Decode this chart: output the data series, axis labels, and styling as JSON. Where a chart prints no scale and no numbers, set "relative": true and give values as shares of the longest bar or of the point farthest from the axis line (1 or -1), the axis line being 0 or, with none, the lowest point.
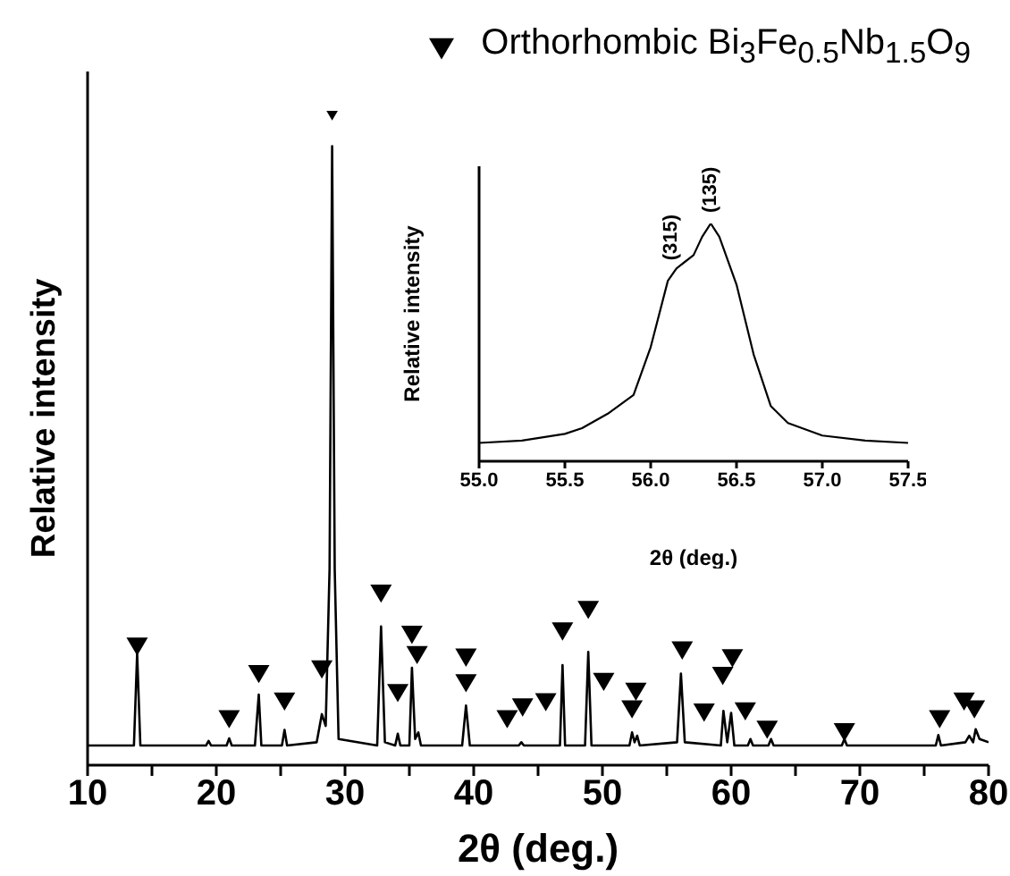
{
  "chart_data": [
    {
      "type": "line",
      "xlabel": "2θ (deg.)",
      "ylabel": "Relative intensity",
      "relative": true,
      "tick_labels": "x",
      "legend": "top right",
      "xlim": [
        10,
        80
      ],
      "xticks": [
        10,
        {
          "value": 15,
          "label": null
        },
        20,
        {
          "value": 25,
          "label": null
        },
        30,
        {
          "value": 35,
          "label": null
        },
        40,
        {
          "value": 45,
          "label": null
        },
        50,
        {
          "value": 55,
          "label": null
        },
        60,
        {
          "value": 65,
          "label": null
        },
        70,
        {
          "value": 75,
          "label": null
        },
        80
      ],
      "series": [
        {
          "type": "line",
          "color": "#000000",
          "marker": "none",
          "line_style": "solid",
          "x": [
            10,
            13.6,
            13.85,
            14.1,
            19.2,
            19.4,
            19.6,
            20.8,
            21.0,
            21.2,
            23.0,
            23.3,
            23.5,
            25.1,
            25.3,
            25.5,
            27.8,
            28.2,
            28.5,
            28.8,
            29.0,
            29.2,
            29.5,
            32.5,
            32.8,
            33.1,
            33.9,
            34.1,
            34.3,
            35.0,
            35.2,
            35.45,
            35.7,
            35.9,
            39.1,
            39.4,
            39.7,
            43.5,
            43.7,
            43.9,
            46.7,
            46.9,
            47.1,
            48.65,
            48.9,
            49.15,
            52.1,
            52.3,
            52.5,
            52.7,
            52.9,
            55.8,
            56.1,
            56.4,
            59.2,
            59.4,
            59.7,
            60.0,
            60.25,
            61.3,
            61.5,
            61.7,
            62.9,
            63.1,
            63.3,
            68.6,
            68.8,
            69.0,
            75.9,
            76.1,
            76.3,
            78.2,
            78.5,
            78.8,
            79.0,
            79.3,
            80
          ],
          "values": [
            0.03,
            0.03,
            0.171,
            0.03,
            0.03,
            0.037,
            0.03,
            0.03,
            0.041,
            0.03,
            0.03,
            0.108,
            0.03,
            0.03,
            0.054,
            0.03,
            0.035,
            0.078,
            0.06,
            0.3,
            0.946,
            0.3,
            0.04,
            0.03,
            0.212,
            0.035,
            0.03,
            0.048,
            0.03,
            0.03,
            0.149,
            0.04,
            0.05,
            0.03,
            0.03,
            0.091,
            0.03,
            0.03,
            0.035,
            0.03,
            0.03,
            0.153,
            0.03,
            0.03,
            0.173,
            0.03,
            0.03,
            0.05,
            0.035,
            0.045,
            0.03,
            0.035,
            0.14,
            0.035,
            0.03,
            0.083,
            0.035,
            0.08,
            0.03,
            0.03,
            0.04,
            0.03,
            0.03,
            0.04,
            0.03,
            0.03,
            0.04,
            0.03,
            0.03,
            0.046,
            0.03,
            0.035,
            0.045,
            0.035,
            0.055,
            0.04,
            0.035
          ]
        },
        {
          "type": "scatter",
          "name": "Orthorhombic Bi$_{3}$Fe$_{0.5}$Nb$_{1.5}$O$_{9}$",
          "color": "#000000",
          "marker": "triangle",
          "x": [
            13.85,
            21.0,
            23.3,
            25.3,
            28.2,
            29.0,
            32.8,
            34.1,
            35.2,
            35.6,
            39.4,
            39.4,
            42.6,
            43.8,
            45.6,
            46.9,
            48.9,
            50.1,
            52.6,
            52.3,
            56.2,
            57.9,
            59.35,
            60.1,
            61.1,
            62.8,
            68.8,
            76.2,
            78.1,
            78.9
          ],
          "values": [
            0.182,
            0.071,
            0.14,
            0.098,
            0.147,
            1.0,
            0.263,
            0.111,
            0.2,
            0.169,
            0.165,
            0.126,
            0.071,
            0.089,
            0.097,
            0.205,
            0.238,
            0.128,
            0.113,
            0.086,
            0.176,
            0.081,
            0.137,
            0.164,
            0.083,
            0.055,
            0.051,
            0.071,
            0.098,
            0.086
          ]
        }
      ]
    },
    {
      "type": "line",
      "xlabel": "2θ (deg.)",
      "ylabel": "Relative intensity",
      "relative": true,
      "tick_labels": "x",
      "xlim": [
        55,
        57.5
      ],
      "xticks": [
        {
          "value": 55,
          "label": "55.0"
        },
        55.5,
        {
          "value": 56,
          "label": "56.0"
        },
        56.5,
        {
          "value": 57,
          "label": "57.0"
        },
        57.5
      ],
      "series": [
        {
          "type": "line",
          "color": "#000000",
          "marker": "none",
          "line_style": "solid",
          "x": [
            55.0,
            55.25,
            55.5,
            55.6,
            55.75,
            55.9,
            56.0,
            56.1,
            56.15,
            56.25,
            56.3,
            56.35,
            56.4,
            56.5,
            56.6,
            56.7,
            56.8,
            57.0,
            57.25,
            57.5
          ],
          "values": [
            0.077,
            0.087,
            0.115,
            0.139,
            0.2,
            0.279,
            0.48,
            0.759,
            0.811,
            0.867,
            0.944,
            1.0,
            0.944,
            0.743,
            0.449,
            0.232,
            0.161,
            0.108,
            0.087,
            0.077
          ]
        }
      ],
      "annotations": [
        {
          "text": "(315)",
          "x": 56.12,
          "y": 0.8
        },
        {
          "text": "(135)",
          "x": 56.35,
          "y": 1.0
        }
      ]
    }
  ]
}
